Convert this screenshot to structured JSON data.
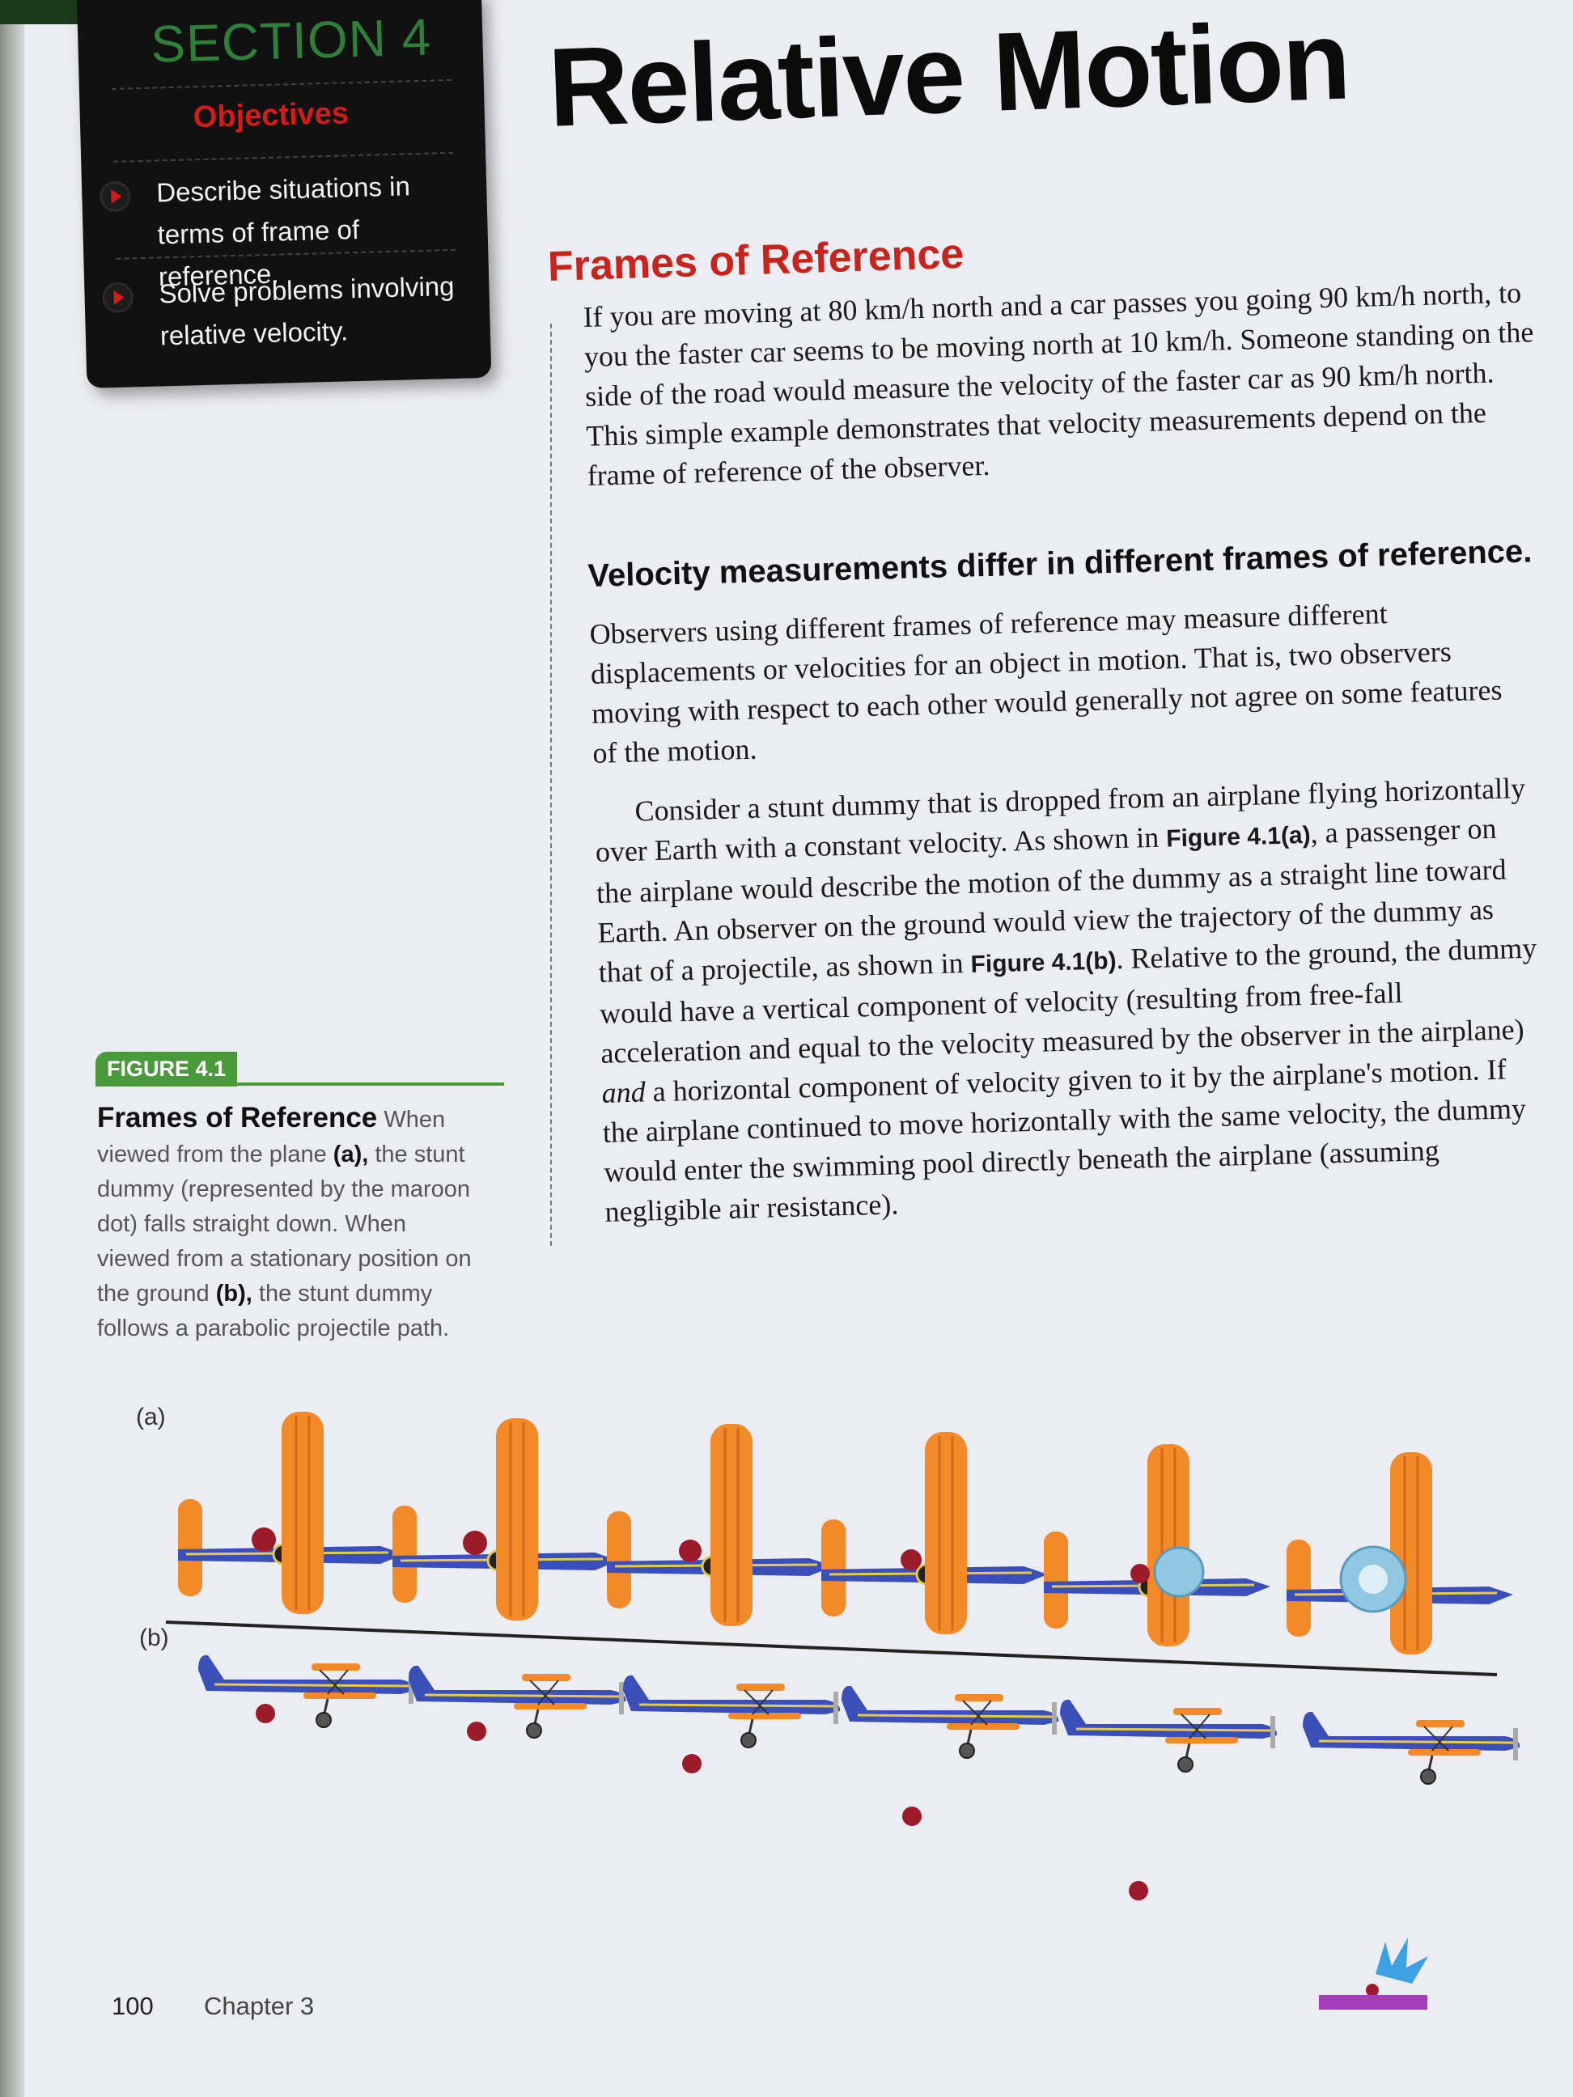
{
  "section": "SECTION 4",
  "objectives": {
    "heading": "Objectives",
    "items": [
      "Describe situations in terms of frame of reference.",
      "Solve problems involving relative velocity."
    ]
  },
  "title": "Relative Motion",
  "heading1": "Frames of Reference",
  "para1": "If you are moving at 80 km/h north and a car passes you going 90 km/h north, to you the faster car seems to be moving north at 10 km/h. Someone standing on the side of the road would measure the velocity of the faster car as 90 km/h north. This simple example demonstrates that velocity measurements depend on the frame of reference of the observer.",
  "heading2": "Velocity measurements differ in different frames of reference.",
  "para2": "Observers using different frames of reference may measure different displacements or velocities for an object in motion. That is, two observers moving with respect to each other would generally not agree on some features of the motion.",
  "para3": {
    "t1": "Consider a stunt dummy that is dropped from an airplane flying horizontally over Earth with a constant velocity. As shown in ",
    "ref1": "Figure 4.1(a)",
    "t2": ", a passenger on the airplane would describe the motion of the dummy as a straight line toward Earth. An observer on the ground would view the trajectory of the dummy as that of a projectile, as shown in ",
    "ref2": "Figure 4.1(b)",
    "t3": ". Relative to the ground, the dummy would have a vertical component of velocity (resulting from free-fall acceleration and equal to the velocity measured by the observer in the airplane) ",
    "em": "and",
    "t4": " a horizontal component of velocity given to it by the airplane's motion. If the airplane continued to move horizontally with the same velocity, the dummy would enter the swimming pool directly beneath the airplane (assuming negligible air resistance)."
  },
  "figure": {
    "tag": "FIGURE 4.1",
    "caption_title": "Frames of Reference",
    "c1": " When viewed from the plane ",
    "a": "(a),",
    "c2": " the stunt dummy (represented by the maroon dot) falls straight down. When viewed from a stationary position on the ground ",
    "b": "(b),",
    "c3": " the stunt dummy follows a parabolic projectile path.",
    "label_a": "(a)",
    "label_b": "(b)"
  },
  "footer": {
    "page": "100",
    "chapter": "Chapter 3"
  },
  "colors": {
    "section_green": "#2e7f3a",
    "heading_red": "#c7241e",
    "figure_green": "#4a9a3b",
    "plane_orange": "#f28a2a",
    "plane_blue": "#3b4fb8",
    "dummy_maroon": "#9c1b2b"
  }
}
